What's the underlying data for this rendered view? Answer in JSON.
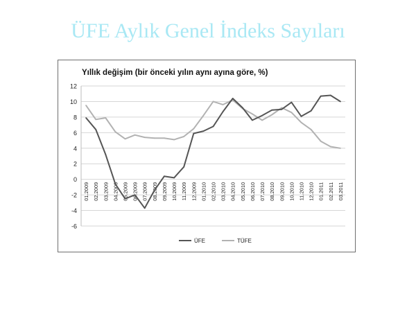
{
  "slide": {
    "title": "ÜFE Aylık Genel İndeks Sayıları"
  },
  "chart_data": {
    "type": "line",
    "title": "Yıllık değişim (bir önceki yılın aynı ayına göre, %)",
    "xlabel": "",
    "ylabel": "",
    "ylim": [
      -6,
      12
    ],
    "yticks": [
      -6,
      -4,
      -2,
      0,
      2,
      4,
      6,
      8,
      10,
      12
    ],
    "grid": true,
    "legend": "bottom",
    "categories": [
      "01.2009",
      "02.2009",
      "03.2009",
      "04.2009",
      "05.2009",
      "06.2009",
      "07.2009",
      "08.2009",
      "09.2009",
      "10.2009",
      "11.2009",
      "12.2009",
      "01.2010",
      "02.2010",
      "03.2010",
      "04.2010",
      "05.2010",
      "06.2010",
      "07.2010",
      "08.2010",
      "09.2010",
      "10.2010",
      "11.2010",
      "12.2010",
      "01.2011",
      "02.2011",
      "03.2011"
    ],
    "series": [
      {
        "name": "ÜFE",
        "color": "#555555",
        "values": [
          7.9,
          6.4,
          3.2,
          -0.6,
          -2.5,
          -2.0,
          -3.7,
          -1.4,
          0.4,
          0.2,
          1.6,
          5.9,
          6.2,
          6.8,
          8.7,
          10.4,
          9.2,
          7.6,
          8.2,
          8.9,
          9.0,
          9.9,
          8.1,
          8.8,
          10.7,
          10.8,
          10.0
        ]
      },
      {
        "name": "TÜFE",
        "color": "#b2b2b2",
        "values": [
          9.5,
          7.7,
          7.9,
          6.1,
          5.2,
          5.7,
          5.4,
          5.3,
          5.3,
          5.1,
          5.5,
          6.5,
          8.2,
          10.0,
          9.6,
          10.2,
          9.1,
          8.4,
          7.6,
          8.3,
          9.2,
          8.6,
          7.3,
          6.4,
          4.9,
          4.2,
          4.0
        ]
      }
    ]
  }
}
